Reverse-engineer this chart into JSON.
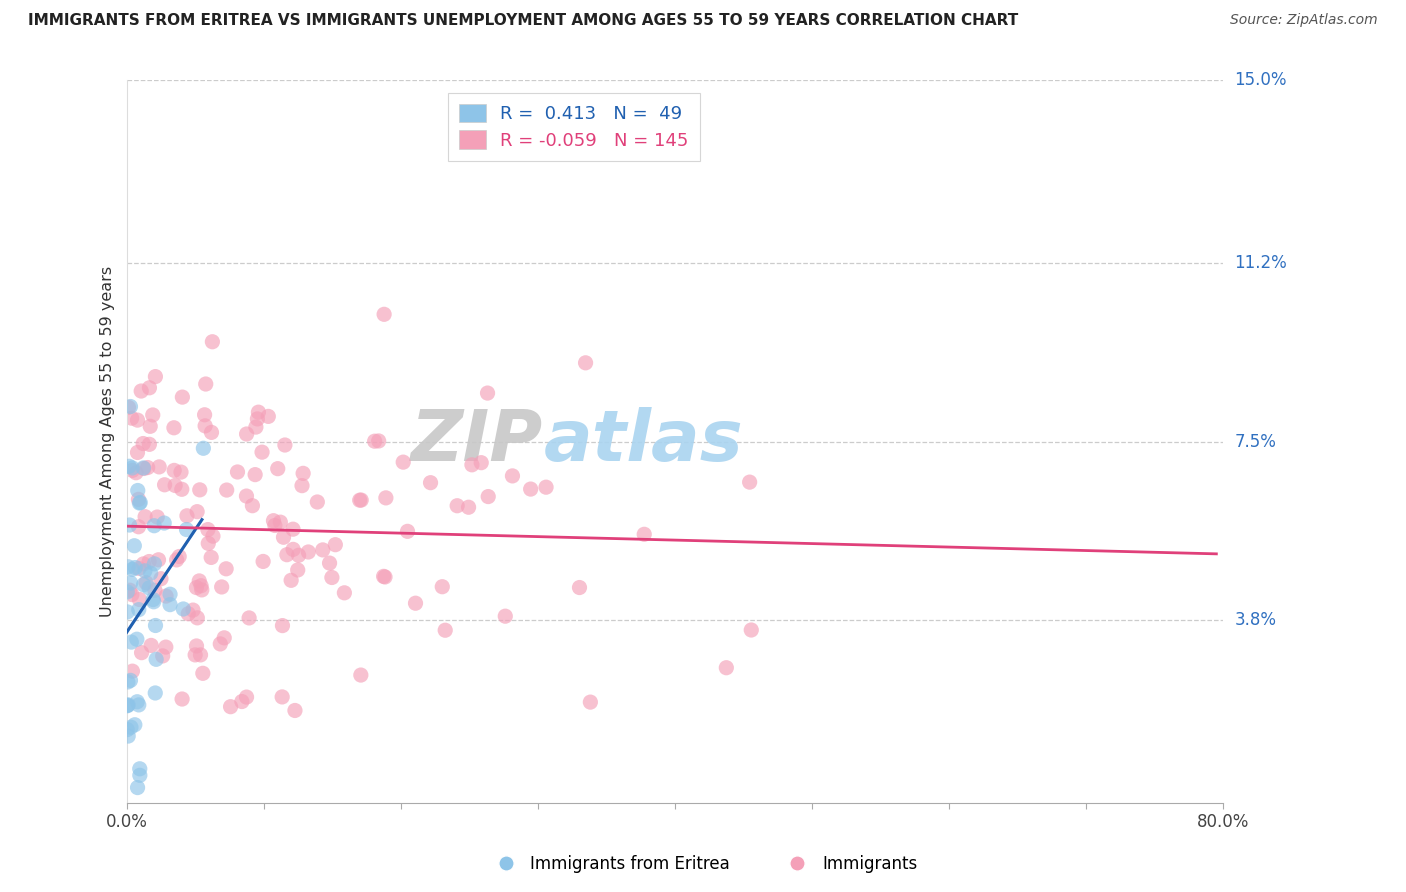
{
  "title": "IMMIGRANTS FROM ERITREA VS IMMIGRANTS UNEMPLOYMENT AMONG AGES 55 TO 59 YEARS CORRELATION CHART",
  "source": "Source: ZipAtlas.com",
  "ylabel": "Unemployment Among Ages 55 to 59 years",
  "xlabel_blue": "Immigrants from Eritrea",
  "xlabel_pink": "Immigrants",
  "xlim": [
    0.0,
    0.8
  ],
  "ylim": [
    0.0,
    0.15
  ],
  "xtick_positions": [
    0.0,
    0.1,
    0.2,
    0.3,
    0.4,
    0.5,
    0.6,
    0.7,
    0.8
  ],
  "xticklabels": [
    "0.0%",
    "",
    "",
    "",
    "",
    "",
    "",
    "",
    "80.0%"
  ],
  "ytick_labels_right": [
    "15.0%",
    "11.2%",
    "7.5%",
    "3.8%"
  ],
  "ytick_positions_right": [
    0.15,
    0.112,
    0.075,
    0.038
  ],
  "grid_color": "#cccccc",
  "background_color": "#ffffff",
  "blue_color": "#8ec4e8",
  "blue_line_color": "#2060b0",
  "pink_color": "#f4a0b8",
  "pink_line_color": "#e0407a",
  "legend_R_blue": " 0.413",
  "legend_N_blue": " 49",
  "legend_R_pink": "-0.059",
  "legend_N_pink": "145",
  "watermark_zip": "ZIP",
  "watermark_atlas": "atlas",
  "seed": 99
}
